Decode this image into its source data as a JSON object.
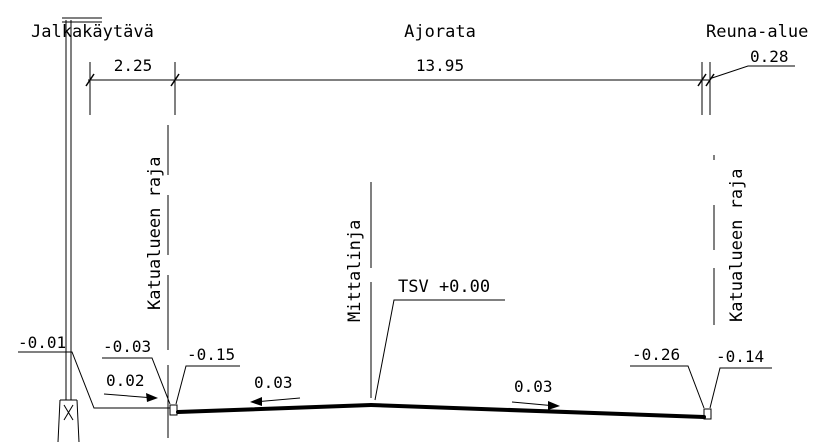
{
  "sections": {
    "sidewalk": "Jalkakäytävä",
    "roadway": "Ajorata",
    "edge_area": "Reuna-alue"
  },
  "dimensions": {
    "sidewalk_width": "2.25",
    "roadway_width": "13.95",
    "edge_width": "0.28"
  },
  "labels": {
    "boundary_left": "Katualueen raja",
    "boundary_right": "Katualueen raja",
    "centerline": "Mittalinja",
    "reference_height": "TSV +0.00"
  },
  "heights": {
    "pole_base": "-0.01",
    "curb_top_left": "-0.03",
    "curb_bottom_left": "-0.15",
    "curb_top_right": "-0.26",
    "curb_bottom_right": "-0.14"
  },
  "slopes": {
    "sidewalk": "0.02",
    "roadway_left": "0.03",
    "roadway_right": "0.03"
  }
}
